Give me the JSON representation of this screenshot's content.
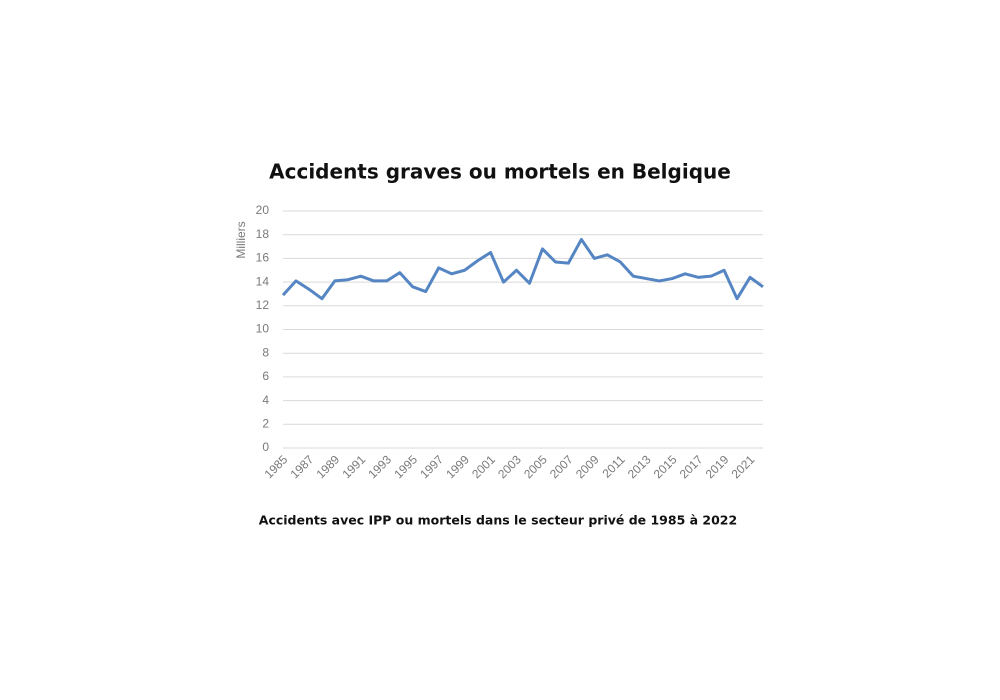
{
  "chart_data": {
    "type": "line",
    "title": "Accidents graves ou mortels en Belgique",
    "caption": "Accidents avec IPP ou mortels dans le secteur privé de 1985 à 2022",
    "y_label": "Milliers",
    "x": [
      1985,
      1986,
      1987,
      1988,
      1989,
      1990,
      1991,
      1992,
      1993,
      1994,
      1995,
      1996,
      1997,
      1998,
      1999,
      2000,
      2001,
      2002,
      2003,
      2004,
      2005,
      2006,
      2007,
      2008,
      2009,
      2010,
      2011,
      2012,
      2013,
      2014,
      2015,
      2016,
      2017,
      2018,
      2019,
      2020,
      2021,
      2022
    ],
    "values": [
      12.9,
      14.1,
      13.4,
      12.6,
      14.1,
      14.2,
      14.5,
      14.1,
      14.1,
      14.8,
      13.6,
      13.2,
      15.2,
      14.7,
      15.0,
      15.8,
      16.5,
      14.0,
      15.0,
      13.9,
      16.8,
      15.7,
      15.6,
      17.6,
      16.0,
      16.3,
      15.7,
      14.5,
      14.3,
      14.1,
      14.3,
      14.7,
      14.4,
      14.5,
      15.0,
      12.6,
      14.4,
      13.6
    ],
    "color": "#5585c2",
    "xlim": [
      1985,
      2022
    ],
    "xticks": [
      1985,
      1987,
      1989,
      1991,
      1993,
      1995,
      1997,
      1999,
      2001,
      2003,
      2005,
      2007,
      2009,
      2011,
      2013,
      2015,
      2017,
      2019,
      2021
    ],
    "ylim": [
      0,
      20
    ],
    "yticks": [
      0,
      2,
      4,
      6,
      8,
      10,
      12,
      14,
      16,
      18,
      20
    ],
    "grid": true
  }
}
